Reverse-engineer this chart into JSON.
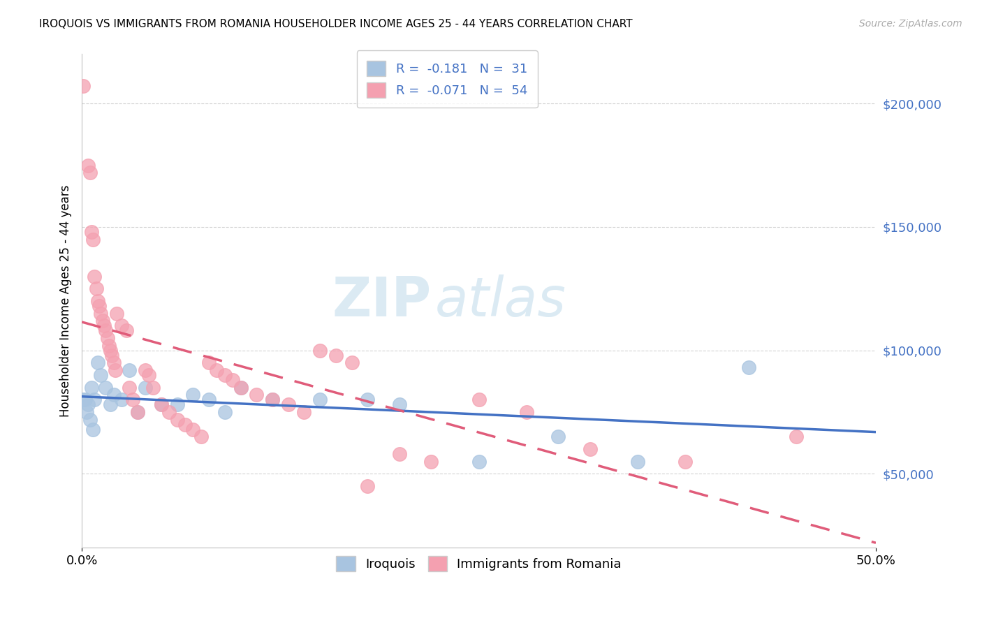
{
  "title": "IROQUOIS VS IMMIGRANTS FROM ROMANIA HOUSEHOLDER INCOME AGES 25 - 44 YEARS CORRELATION CHART",
  "source": "Source: ZipAtlas.com",
  "ylabel": "Householder Income Ages 25 - 44 years",
  "r_iroquois": -0.181,
  "n_iroquois": 31,
  "r_romania": -0.071,
  "n_romania": 54,
  "yticks": [
    50000,
    100000,
    150000,
    200000
  ],
  "ytick_labels": [
    "$50,000",
    "$100,000",
    "$150,000",
    "$200,000"
  ],
  "xlim": [
    0.0,
    0.5
  ],
  "ylim": [
    20000,
    220000
  ],
  "iroquois_color": "#a8c4e0",
  "romania_color": "#f4a0b0",
  "iroquois_line_color": "#4472c4",
  "romania_line_color": "#e05c7a",
  "iroquois_points": [
    [
      0.001,
      80000
    ],
    [
      0.002,
      80000
    ],
    [
      0.003,
      75000
    ],
    [
      0.004,
      78000
    ],
    [
      0.005,
      72000
    ],
    [
      0.006,
      85000
    ],
    [
      0.007,
      68000
    ],
    [
      0.008,
      80000
    ],
    [
      0.01,
      95000
    ],
    [
      0.012,
      90000
    ],
    [
      0.015,
      85000
    ],
    [
      0.018,
      78000
    ],
    [
      0.02,
      82000
    ],
    [
      0.025,
      80000
    ],
    [
      0.03,
      92000
    ],
    [
      0.035,
      75000
    ],
    [
      0.04,
      85000
    ],
    [
      0.05,
      78000
    ],
    [
      0.06,
      78000
    ],
    [
      0.07,
      82000
    ],
    [
      0.08,
      80000
    ],
    [
      0.09,
      75000
    ],
    [
      0.1,
      85000
    ],
    [
      0.12,
      80000
    ],
    [
      0.15,
      80000
    ],
    [
      0.18,
      80000
    ],
    [
      0.2,
      78000
    ],
    [
      0.25,
      55000
    ],
    [
      0.3,
      65000
    ],
    [
      0.35,
      55000
    ],
    [
      0.42,
      93000
    ]
  ],
  "romania_points": [
    [
      0.001,
      207000
    ],
    [
      0.004,
      175000
    ],
    [
      0.005,
      172000
    ],
    [
      0.006,
      148000
    ],
    [
      0.007,
      145000
    ],
    [
      0.008,
      130000
    ],
    [
      0.009,
      125000
    ],
    [
      0.01,
      120000
    ],
    [
      0.011,
      118000
    ],
    [
      0.012,
      115000
    ],
    [
      0.013,
      112000
    ],
    [
      0.014,
      110000
    ],
    [
      0.015,
      108000
    ],
    [
      0.016,
      105000
    ],
    [
      0.017,
      102000
    ],
    [
      0.018,
      100000
    ],
    [
      0.019,
      98000
    ],
    [
      0.02,
      95000
    ],
    [
      0.021,
      92000
    ],
    [
      0.022,
      115000
    ],
    [
      0.025,
      110000
    ],
    [
      0.028,
      108000
    ],
    [
      0.03,
      85000
    ],
    [
      0.032,
      80000
    ],
    [
      0.035,
      75000
    ],
    [
      0.04,
      92000
    ],
    [
      0.042,
      90000
    ],
    [
      0.045,
      85000
    ],
    [
      0.05,
      78000
    ],
    [
      0.055,
      75000
    ],
    [
      0.06,
      72000
    ],
    [
      0.065,
      70000
    ],
    [
      0.07,
      68000
    ],
    [
      0.075,
      65000
    ],
    [
      0.08,
      95000
    ],
    [
      0.085,
      92000
    ],
    [
      0.09,
      90000
    ],
    [
      0.095,
      88000
    ],
    [
      0.1,
      85000
    ],
    [
      0.11,
      82000
    ],
    [
      0.12,
      80000
    ],
    [
      0.13,
      78000
    ],
    [
      0.14,
      75000
    ],
    [
      0.15,
      100000
    ],
    [
      0.16,
      98000
    ],
    [
      0.17,
      95000
    ],
    [
      0.18,
      45000
    ],
    [
      0.2,
      58000
    ],
    [
      0.22,
      55000
    ],
    [
      0.25,
      80000
    ],
    [
      0.28,
      75000
    ],
    [
      0.32,
      60000
    ],
    [
      0.38,
      55000
    ],
    [
      0.45,
      65000
    ]
  ]
}
